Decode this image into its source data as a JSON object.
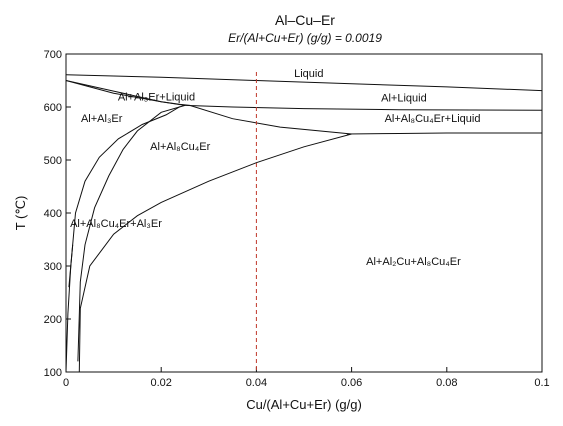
{
  "chart_data": {
    "type": "line",
    "title": "Al–Cu–Er",
    "subtitle": "Er/(Al+Cu+Er) (g/g) = 0.0019",
    "xlabel": "Cu/(Al+Cu+Er) (g/g)",
    "ylabel": "T (℃)",
    "xlim": [
      0,
      0.1
    ],
    "ylim": [
      100,
      700
    ],
    "xticks": [
      "0",
      "0.02",
      "0.04",
      "0.06",
      "0.08",
      "0.1"
    ],
    "yticks": [
      "100",
      "200",
      "300",
      "400",
      "500",
      "600",
      "700"
    ],
    "grid": false,
    "legend": "none",
    "series": [
      {
        "x": [
          0,
          0.02,
          0.04,
          0.06,
          0.08,
          0.1
        ],
        "y": [
          661,
          656,
          650,
          644,
          638,
          631
        ]
      },
      {
        "x": [
          0,
          0.01,
          0.02,
          0.025,
          0.035,
          0.05,
          0.07,
          0.1
        ],
        "y": [
          650,
          630,
          610,
          603,
          600,
          597,
          595,
          594
        ]
      },
      {
        "x": [
          0,
          0.01,
          0.02,
          0.024,
          0.026,
          0.035,
          0.045,
          0.06
        ],
        "y": [
          650,
          626,
          610,
          605,
          603,
          578,
          562,
          549
        ]
      },
      {
        "x": [
          0.059,
          0.07,
          0.08,
          0.09,
          0.1
        ],
        "y": [
          549,
          550,
          551,
          551,
          551
        ]
      },
      {
        "x": [
          0.0006,
          0.002,
          0.004,
          0.007,
          0.011,
          0.016,
          0.021,
          0.024
        ],
        "y": [
          260,
          400,
          460,
          505,
          540,
          567,
          585,
          601
        ]
      },
      {
        "x": [
          0.0025,
          0.003,
          0.004,
          0.006,
          0.009,
          0.012,
          0.015,
          0.02,
          0.025
        ],
        "y": [
          120,
          270,
          340,
          410,
          470,
          520,
          555,
          590,
          603
        ]
      },
      {
        "x": [
          0.0028,
          0.003,
          0.005,
          0.01,
          0.015,
          0.02,
          0.03,
          0.04,
          0.05,
          0.06
        ],
        "y": [
          100,
          220,
          300,
          360,
          395,
          420,
          460,
          495,
          525,
          549
        ]
      },
      {
        "x": [
          0,
          0.0004,
          0.001,
          0.0014
        ],
        "y": [
          100,
          210,
          300,
          340
        ]
      }
    ],
    "reference_line": {
      "x": 0.04,
      "color": "#c0392b",
      "style": "dashed"
    },
    "regions": [
      {
        "label": "Liquid",
        "x": 0.051,
        "y": 657
      },
      {
        "label": "Al+Al₃Er+Liquid",
        "x": 0.019,
        "y": 612
      },
      {
        "label": "Al+Liquid",
        "x": 0.071,
        "y": 610
      },
      {
        "label": "Al+Al₃Er",
        "x": 0.0075,
        "y": 572
      },
      {
        "label": "Al+Al₈Cu₄Er+Liquid",
        "x": 0.077,
        "y": 572
      },
      {
        "label": "Al+Al₈Cu₄Er",
        "x": 0.024,
        "y": 519
      },
      {
        "label": "Al+Al₈Cu₄Er+Al₃Er",
        "x": 0.0105,
        "y": 374
      },
      {
        "label": "Al+Al₂Cu+Al₈Cu₄Er",
        "x": 0.073,
        "y": 302
      }
    ]
  }
}
